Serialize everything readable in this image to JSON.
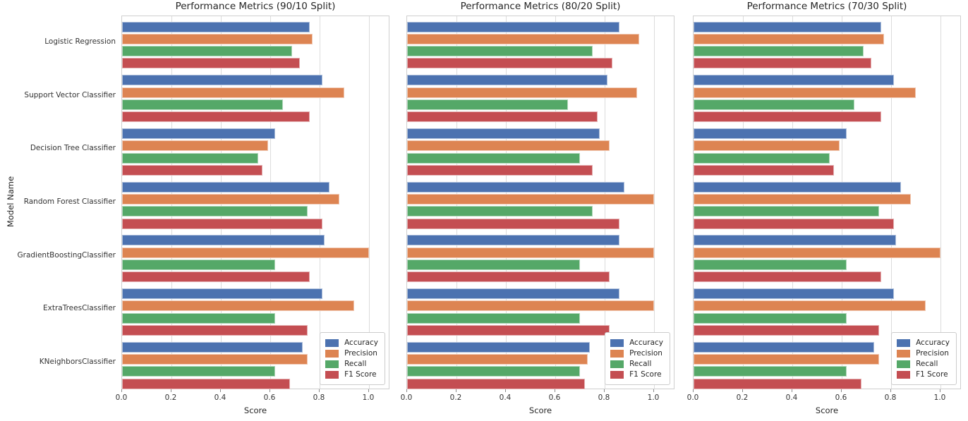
{
  "figure": {
    "ylabel": "Model Name",
    "grid": true,
    "palette": {
      "accuracy": "#4C72B0",
      "precision": "#DD8452",
      "recall": "#55A868",
      "f1": "#C44E52"
    }
  },
  "chart_data": [
    {
      "type": "bar",
      "orientation": "horizontal",
      "title": "Performance Metrics (90/10 Split)",
      "xlabel": "Score",
      "ylabel": "Model Name",
      "xlim": [
        0.0,
        1.08
      ],
      "xticks": [
        0.0,
        0.2,
        0.4,
        0.6,
        0.8,
        1.0
      ],
      "grid": true,
      "legend_position": "lower right",
      "categories": [
        "Logistic Regression",
        "Support Vector Classifier",
        "Decision Tree Classifier",
        "Random Forest Classifier",
        "GradientBoostingClassifier",
        "ExtraTreesClassifier",
        "KNeighborsClassifier"
      ],
      "series": [
        {
          "name": "Accuracy",
          "color": "#4C72B0",
          "values": [
            0.76,
            0.81,
            0.62,
            0.84,
            0.82,
            0.81,
            0.73
          ]
        },
        {
          "name": "Precision",
          "color": "#DD8452",
          "values": [
            0.77,
            0.9,
            0.59,
            0.88,
            1.0,
            0.94,
            0.75
          ]
        },
        {
          "name": "Recall",
          "color": "#55A868",
          "values": [
            0.69,
            0.65,
            0.55,
            0.75,
            0.62,
            0.62,
            0.62
          ]
        },
        {
          "name": "F1 Score",
          "color": "#C44E52",
          "values": [
            0.72,
            0.76,
            0.57,
            0.81,
            0.76,
            0.75,
            0.68
          ]
        }
      ]
    },
    {
      "type": "bar",
      "orientation": "horizontal",
      "title": "Performance Metrics (80/20 Split)",
      "xlabel": "Score",
      "ylabel": "Model Name",
      "xlim": [
        0.0,
        1.08
      ],
      "xticks": [
        0.0,
        0.2,
        0.4,
        0.6,
        0.8,
        1.0
      ],
      "grid": true,
      "legend_position": "lower right",
      "categories": [
        "Logistic Regression",
        "Support Vector Classifier",
        "Decision Tree Classifier",
        "Random Forest Classifier",
        "GradientBoostingClassifier",
        "ExtraTreesClassifier",
        "KNeighborsClassifier"
      ],
      "series": [
        {
          "name": "Accuracy",
          "color": "#4C72B0",
          "values": [
            0.86,
            0.81,
            0.78,
            0.88,
            0.86,
            0.86,
            0.74
          ]
        },
        {
          "name": "Precision",
          "color": "#DD8452",
          "values": [
            0.94,
            0.93,
            0.82,
            1.0,
            1.0,
            1.0,
            0.73
          ]
        },
        {
          "name": "Recall",
          "color": "#55A868",
          "values": [
            0.75,
            0.65,
            0.7,
            0.75,
            0.7,
            0.7,
            0.7
          ]
        },
        {
          "name": "F1 Score",
          "color": "#C44E52",
          "values": [
            0.83,
            0.77,
            0.75,
            0.86,
            0.82,
            0.82,
            0.72
          ]
        }
      ]
    },
    {
      "type": "bar",
      "orientation": "horizontal",
      "title": "Performance Metrics (70/30 Split)",
      "xlabel": "Score",
      "ylabel": "Model Name",
      "xlim": [
        0.0,
        1.08
      ],
      "xticks": [
        0.0,
        0.2,
        0.4,
        0.6,
        0.8,
        1.0
      ],
      "grid": true,
      "legend_position": "lower right",
      "categories": [
        "Logistic Regression",
        "Support Vector Classifier",
        "Decision Tree Classifier",
        "Random Forest Classifier",
        "GradientBoostingClassifier",
        "ExtraTreesClassifier",
        "KNeighborsClassifier"
      ],
      "series": [
        {
          "name": "Accuracy",
          "color": "#4C72B0",
          "values": [
            0.76,
            0.81,
            0.62,
            0.84,
            0.82,
            0.81,
            0.73
          ]
        },
        {
          "name": "Precision",
          "color": "#DD8452",
          "values": [
            0.77,
            0.9,
            0.59,
            0.88,
            1.0,
            0.94,
            0.75
          ]
        },
        {
          "name": "Recall",
          "color": "#55A868",
          "values": [
            0.69,
            0.65,
            0.55,
            0.75,
            0.62,
            0.62,
            0.62
          ]
        },
        {
          "name": "F1 Score",
          "color": "#C44E52",
          "values": [
            0.72,
            0.76,
            0.57,
            0.81,
            0.76,
            0.75,
            0.68
          ]
        }
      ]
    }
  ]
}
